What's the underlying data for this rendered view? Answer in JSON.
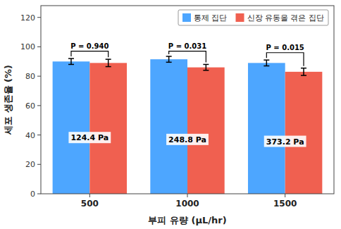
{
  "chart_data": {
    "type": "bar",
    "xlabel": "부피 유량 (μL/hr)",
    "ylabel": "세포 생존율 (%)",
    "categories": [
      "500",
      "1000",
      "1500"
    ],
    "series": [
      {
        "name": "통제 집단",
        "color": "#4da6ff",
        "values": [
          90.0,
          91.5,
          89.0
        ],
        "errors": [
          2.0,
          2.0,
          2.0
        ]
      },
      {
        "name": "신장 유동을 겪은 집단",
        "color": "#f06050",
        "values": [
          89.0,
          86.0,
          83.0
        ],
        "errors": [
          2.5,
          2.0,
          2.5
        ]
      }
    ],
    "pressure_labels": [
      "124.4 Pa",
      "248.8 Pa",
      "373.2 Pa"
    ],
    "p_values": [
      "P = 0.940",
      "P = 0.031",
      "P = 0.015"
    ],
    "bracket_y": [
      97,
      97,
      96
    ],
    "ylim": [
      0,
      128
    ],
    "yticks": [
      0,
      20,
      40,
      60,
      80,
      100,
      120
    ],
    "grid": false,
    "legend": "upper right"
  }
}
